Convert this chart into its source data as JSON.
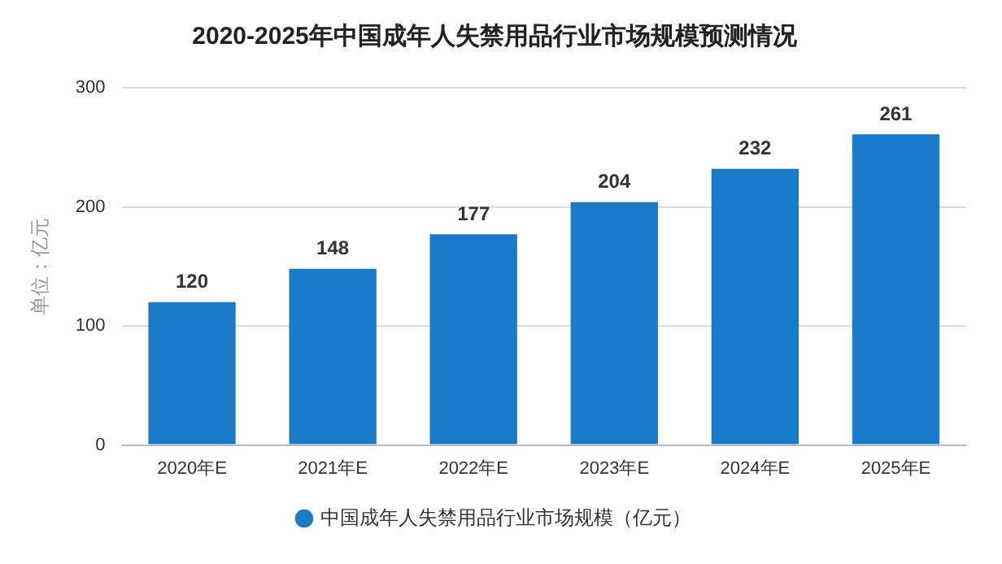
{
  "chart_data": {
    "type": "bar",
    "title": "2020-2025年中国成年人失禁用品行业市场规模预测情况",
    "ylabel": "单位：亿元",
    "categories": [
      "2020年E",
      "2021年E",
      "2022年E",
      "2023年E",
      "2024年E",
      "2025年E"
    ],
    "series": [
      {
        "name": "中国成年人失禁用品行业市场规模（亿元）",
        "color": "#1a7cc8",
        "values": [
          120,
          148,
          177,
          204,
          232,
          261
        ]
      }
    ],
    "ylim": [
      0,
      300
    ],
    "yticks": [
      0,
      100,
      200,
      300
    ],
    "grid": "y",
    "legend": "bottom",
    "data_labels": true
  }
}
